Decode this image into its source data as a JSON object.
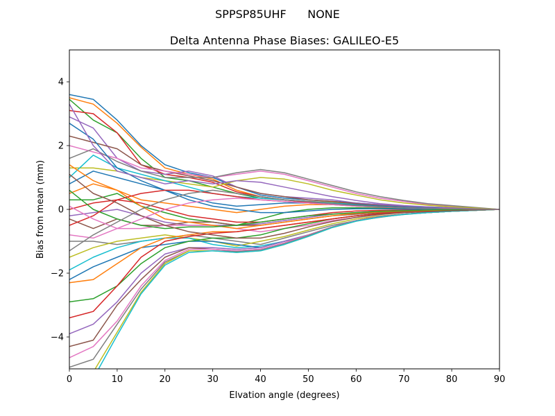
{
  "figure": {
    "suptitle": "SPPSP85UHF      NONE"
  },
  "chart_data": {
    "type": "line",
    "title": "Delta Antenna Phase Biases: GALILEO-E5",
    "xlabel": "Elvation angle (degrees)",
    "ylabel": "Bias from mean (mm)",
    "xlim": [
      0,
      90
    ],
    "ylim": [
      -5,
      5
    ],
    "xticks": [
      0,
      10,
      20,
      30,
      40,
      50,
      60,
      70,
      80,
      90
    ],
    "yticks": [
      -4,
      -2,
      0,
      2,
      4
    ],
    "ytick_labels": [
      "−4",
      "−2",
      "0",
      "2",
      "4"
    ],
    "grid": false,
    "x": [
      0,
      5,
      10,
      15,
      20,
      25,
      30,
      35,
      40,
      45,
      50,
      55,
      60,
      65,
      70,
      75,
      80,
      85,
      90
    ],
    "palette": [
      "#1f77b4",
      "#ff7f0e",
      "#2ca02c",
      "#d62728",
      "#9467bd",
      "#8c564b",
      "#e377c2",
      "#7f7f7f",
      "#bcbd22",
      "#17becf"
    ],
    "series": [
      {
        "values": [
          3.6,
          3.45,
          2.8,
          2.0,
          1.4,
          1.15,
          1.0,
          0.7,
          0.45,
          0.35,
          0.3,
          0.25,
          0.2,
          0.15,
          0.1,
          0.08,
          0.05,
          0.02,
          0
        ]
      },
      {
        "values": [
          3.5,
          3.3,
          2.7,
          1.95,
          1.3,
          1.1,
          0.95,
          0.6,
          0.4,
          0.3,
          0.25,
          0.22,
          0.18,
          0.12,
          0.08,
          0.05,
          0.03,
          0.01,
          0
        ]
      },
      {
        "values": [
          3.45,
          2.8,
          2.4,
          1.6,
          1.0,
          0.9,
          0.7,
          0.5,
          0.35,
          0.3,
          0.25,
          0.2,
          0.15,
          0.1,
          0.07,
          0.05,
          0.03,
          0.01,
          0
        ]
      },
      {
        "values": [
          3.1,
          3.0,
          2.4,
          1.4,
          1.1,
          1.0,
          0.85,
          0.55,
          0.4,
          0.3,
          0.22,
          0.18,
          0.14,
          0.1,
          0.07,
          0.05,
          0.03,
          0.01,
          0
        ]
      },
      {
        "values": [
          2.9,
          2.55,
          1.6,
          1.2,
          1.1,
          1.2,
          1.05,
          0.7,
          0.5,
          0.4,
          0.35,
          0.3,
          0.2,
          0.15,
          0.1,
          0.07,
          0.04,
          0.02,
          0
        ]
      },
      {
        "values": [
          2.3,
          2.1,
          1.9,
          1.4,
          1.2,
          1.05,
          0.9,
          0.7,
          0.5,
          0.4,
          0.3,
          0.25,
          0.18,
          0.12,
          0.08,
          0.05,
          0.03,
          0.01,
          0
        ]
      },
      {
        "values": [
          2.0,
          1.8,
          1.6,
          1.3,
          1.2,
          1.1,
          1.0,
          1.1,
          1.2,
          1.1,
          0.9,
          0.7,
          0.5,
          0.35,
          0.25,
          0.15,
          0.1,
          0.05,
          0
        ]
      },
      {
        "values": [
          1.6,
          1.9,
          1.5,
          1.2,
          1.0,
          1.0,
          1.0,
          1.15,
          1.25,
          1.15,
          0.95,
          0.75,
          0.55,
          0.4,
          0.28,
          0.18,
          0.12,
          0.06,
          0
        ]
      },
      {
        "values": [
          1.3,
          1.3,
          1.2,
          1.0,
          0.9,
          0.8,
          0.7,
          0.9,
          1.0,
          0.95,
          0.8,
          0.6,
          0.45,
          0.3,
          0.2,
          0.13,
          0.08,
          0.04,
          0
        ]
      },
      {
        "values": [
          1.0,
          1.7,
          1.3,
          1.1,
          0.9,
          0.7,
          0.5,
          0.4,
          0.35,
          0.3,
          0.25,
          0.2,
          0.15,
          0.1,
          0.07,
          0.05,
          0.03,
          0.01,
          0
        ]
      },
      {
        "values": [
          0.8,
          1.2,
          1.0,
          0.8,
          0.6,
          0.4,
          0.2,
          0.1,
          0.15,
          0.2,
          0.2,
          0.18,
          0.14,
          0.1,
          0.07,
          0.05,
          0.03,
          0.01,
          0
        ]
      },
      {
        "values": [
          0.5,
          0.8,
          0.6,
          0.3,
          0.2,
          0.1,
          0.0,
          -0.1,
          0.0,
          0.1,
          0.15,
          0.15,
          0.12,
          0.08,
          0.05,
          0.03,
          0.02,
          0.01,
          0
        ]
      },
      {
        "values": [
          0.3,
          0.3,
          0.5,
          0.1,
          -0.1,
          -0.3,
          -0.4,
          -0.5,
          -0.3,
          -0.1,
          0.0,
          0.05,
          0.05,
          0.04,
          0.03,
          0.02,
          0.01,
          0.0,
          0
        ]
      },
      {
        "values": [
          0.0,
          0.2,
          0.3,
          0.2,
          0.0,
          -0.2,
          -0.3,
          -0.4,
          -0.4,
          -0.3,
          -0.2,
          -0.1,
          -0.05,
          -0.03,
          -0.02,
          -0.01,
          0.0,
          0.0,
          0
        ]
      },
      {
        "values": [
          -0.2,
          -0.1,
          0.0,
          -0.2,
          -0.4,
          -0.5,
          -0.5,
          -0.5,
          -0.45,
          -0.35,
          -0.25,
          -0.15,
          -0.1,
          -0.06,
          -0.04,
          -0.02,
          -0.01,
          0.0,
          0
        ]
      },
      {
        "values": [
          -0.3,
          -0.6,
          -0.3,
          -0.5,
          -0.5,
          -0.4,
          -0.4,
          -0.5,
          -0.5,
          -0.4,
          -0.3,
          -0.2,
          -0.15,
          -0.1,
          -0.07,
          -0.05,
          -0.03,
          -0.01,
          0
        ]
      },
      {
        "values": [
          -0.8,
          -0.9,
          -0.6,
          -0.6,
          -0.5,
          -0.5,
          -0.5,
          -0.6,
          -0.7,
          -0.6,
          -0.5,
          -0.35,
          -0.25,
          -0.15,
          -0.1,
          -0.07,
          -0.04,
          -0.02,
          0
        ]
      },
      {
        "values": [
          -1.0,
          -1.0,
          -1.1,
          -1.0,
          -0.9,
          -0.8,
          -0.9,
          -1.0,
          -1.1,
          -0.9,
          -0.7,
          -0.5,
          -0.35,
          -0.25,
          -0.15,
          -0.1,
          -0.06,
          -0.03,
          0
        ]
      },
      {
        "values": [
          -1.5,
          -1.2,
          -1.0,
          -0.9,
          -0.8,
          -0.9,
          -1.0,
          -1.15,
          -1.0,
          -0.85,
          -0.65,
          -0.45,
          -0.3,
          -0.2,
          -0.15,
          -0.1,
          -0.06,
          -0.03,
          0
        ]
      },
      {
        "values": [
          -1.9,
          -1.5,
          -1.2,
          -1.0,
          -0.9,
          -0.9,
          -1.1,
          -1.2,
          -1.15,
          -1.0,
          -0.8,
          -0.55,
          -0.35,
          -0.22,
          -0.15,
          -0.1,
          -0.06,
          -0.03,
          0
        ]
      },
      {
        "values": [
          -2.2,
          -1.8,
          -1.5,
          -1.2,
          -1.1,
          -1.0,
          -1.0,
          -1.1,
          -1.2,
          -1.0,
          -0.8,
          -0.55,
          -0.35,
          -0.22,
          -0.15,
          -0.1,
          -0.06,
          -0.03,
          0
        ]
      },
      {
        "values": [
          -2.3,
          -2.2,
          -1.7,
          -1.2,
          -0.9,
          -0.8,
          -0.7,
          -0.7,
          -0.6,
          -0.5,
          -0.4,
          -0.3,
          -0.2,
          -0.13,
          -0.09,
          -0.06,
          -0.04,
          -0.02,
          0
        ]
      },
      {
        "values": [
          -2.9,
          -2.8,
          -2.4,
          -1.7,
          -1.2,
          -1.0,
          -0.9,
          -0.9,
          -0.8,
          -0.6,
          -0.45,
          -0.3,
          -0.2,
          -0.13,
          -0.09,
          -0.06,
          -0.04,
          -0.02,
          0
        ]
      },
      {
        "values": [
          -3.4,
          -3.2,
          -2.4,
          -1.5,
          -1.0,
          -0.85,
          -0.75,
          -0.7,
          -0.6,
          -0.5,
          -0.4,
          -0.3,
          -0.2,
          -0.13,
          -0.09,
          -0.06,
          -0.04,
          -0.02,
          0
        ]
      },
      {
        "values": [
          -3.9,
          -3.6,
          -2.9,
          -2.0,
          -1.4,
          -1.2,
          -1.2,
          -1.25,
          -1.2,
          -1.0,
          -0.8,
          -0.55,
          -0.35,
          -0.22,
          -0.15,
          -0.1,
          -0.06,
          -0.03,
          0
        ]
      },
      {
        "values": [
          -4.3,
          -4.1,
          -3.0,
          -2.2,
          -1.5,
          -1.2,
          -1.25,
          -1.3,
          -1.25,
          -1.05,
          -0.8,
          -0.55,
          -0.35,
          -0.22,
          -0.15,
          -0.1,
          -0.06,
          -0.03,
          0
        ]
      },
      {
        "values": [
          -4.65,
          -4.3,
          -3.5,
          -2.4,
          -1.6,
          -1.25,
          -1.25,
          -1.3,
          -1.25,
          -1.05,
          -0.8,
          -0.55,
          -0.35,
          -0.22,
          -0.15,
          -0.1,
          -0.06,
          -0.03,
          0
        ]
      },
      {
        "values": [
          -4.95,
          -4.7,
          -3.6,
          -2.5,
          -1.65,
          -1.3,
          -1.3,
          -1.32,
          -1.28,
          -1.08,
          -0.82,
          -0.56,
          -0.36,
          -0.23,
          -0.15,
          -0.1,
          -0.06,
          -0.03,
          0
        ]
      },
      {
        "values": [
          -5.5,
          -5.1,
          -3.85,
          -2.6,
          -1.7,
          -1.3,
          -1.3,
          -1.35,
          -1.3,
          -1.1,
          -0.85,
          -0.57,
          -0.37,
          -0.24,
          -0.16,
          -0.1,
          -0.06,
          -0.03,
          0
        ]
      },
      {
        "values": [
          -5.8,
          -5.3,
          -3.95,
          -2.65,
          -1.75,
          -1.35,
          -1.3,
          -1.35,
          -1.3,
          -1.1,
          -0.85,
          -0.57,
          -0.37,
          -0.24,
          -0.16,
          -0.1,
          -0.06,
          -0.03,
          0
        ]
      },
      {
        "values": [
          2.7,
          2.2,
          1.3,
          0.9,
          0.6,
          0.3,
          0.1,
          0.0,
          -0.1,
          -0.1,
          -0.05,
          0.0,
          0.02,
          0.02,
          0.01,
          0.01,
          0.0,
          0.0,
          0
        ]
      },
      {
        "values": [
          1.4,
          0.9,
          0.6,
          0.1,
          -0.3,
          -0.4,
          -0.5,
          -0.6,
          -0.5,
          -0.4,
          -0.3,
          -0.2,
          -0.12,
          -0.08,
          -0.05,
          -0.03,
          -0.02,
          -0.01,
          0
        ]
      },
      {
        "values": [
          0.6,
          0.0,
          -0.3,
          -0.5,
          -0.6,
          -0.55,
          -0.55,
          -0.5,
          -0.4,
          -0.3,
          -0.2,
          -0.15,
          -0.1,
          -0.06,
          -0.04,
          -0.02,
          -0.01,
          0.0,
          0
        ]
      },
      {
        "values": [
          -0.5,
          -0.2,
          0.3,
          0.5,
          0.6,
          0.6,
          0.5,
          0.4,
          0.3,
          0.25,
          0.2,
          0.15,
          0.1,
          0.07,
          0.05,
          0.03,
          0.02,
          0.01,
          0
        ]
      },
      {
        "values": [
          3.3,
          2.0,
          1.2,
          1.0,
          0.8,
          0.9,
          0.8,
          0.9,
          0.85,
          0.7,
          0.55,
          0.4,
          0.28,
          0.18,
          0.12,
          0.08,
          0.05,
          0.02,
          0
        ]
      },
      {
        "values": [
          1.1,
          0.5,
          0.2,
          -0.2,
          -0.5,
          -0.7,
          -0.8,
          -0.9,
          -0.9,
          -0.75,
          -0.55,
          -0.38,
          -0.25,
          -0.16,
          -0.1,
          -0.07,
          -0.04,
          -0.02,
          0
        ]
      },
      {
        "values": [
          0.1,
          -0.3,
          -0.6,
          -0.3,
          0.0,
          0.2,
          0.3,
          0.35,
          0.3,
          0.25,
          0.2,
          0.15,
          0.1,
          0.07,
          0.05,
          0.03,
          0.02,
          0.01,
          0
        ]
      },
      {
        "values": [
          -1.3,
          -0.8,
          -0.4,
          0.0,
          0.3,
          0.5,
          0.6,
          0.5,
          0.4,
          0.3,
          0.25,
          0.18,
          0.12,
          0.08,
          0.05,
          0.03,
          0.02,
          0.01,
          0
        ]
      }
    ]
  }
}
